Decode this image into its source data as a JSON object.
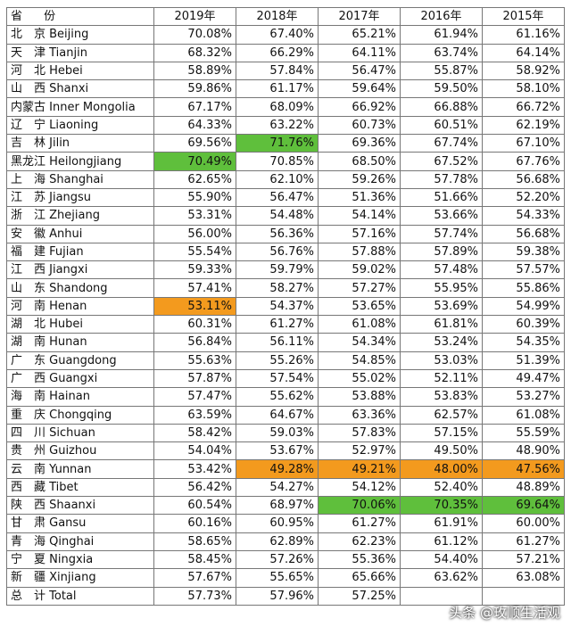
{
  "header": [
    "省 份",
    "2019年",
    "2018年",
    "2017年",
    "2016年",
    "2015年"
  ],
  "colors": {
    "highlight_green": "#5fbf3c",
    "highlight_orange": "#f39a1e"
  },
  "rows": [
    {
      "name": "北　京 Beijing",
      "v": [
        "70.08%",
        "67.40%",
        "65.21%",
        "61.94%",
        "61.16%"
      ],
      "hl": [
        "",
        "",
        "",
        "",
        ""
      ]
    },
    {
      "name": "天　津 Tianjin",
      "v": [
        "68.32%",
        "66.29%",
        "64.11%",
        "63.74%",
        "64.14%"
      ],
      "hl": [
        "",
        "",
        "",
        "",
        ""
      ]
    },
    {
      "name": "河　北 Hebei",
      "v": [
        "58.89%",
        "57.84%",
        "56.47%",
        "55.87%",
        "58.92%"
      ],
      "hl": [
        "",
        "",
        "",
        "",
        ""
      ]
    },
    {
      "name": "山　西 Shanxi",
      "v": [
        "59.86%",
        "61.17%",
        "59.64%",
        "59.50%",
        "58.10%"
      ],
      "hl": [
        "",
        "",
        "",
        "",
        ""
      ]
    },
    {
      "name": "内蒙古 Inner Mongolia",
      "v": [
        "67.17%",
        "68.09%",
        "66.92%",
        "66.88%",
        "66.72%"
      ],
      "hl": [
        "",
        "",
        "",
        "",
        ""
      ]
    },
    {
      "name": "辽　宁 Liaoning",
      "v": [
        "64.33%",
        "63.22%",
        "60.73%",
        "60.51%",
        "62.19%"
      ],
      "hl": [
        "",
        "",
        "",
        "",
        ""
      ]
    },
    {
      "name": "吉　林 Jilin",
      "v": [
        "69.56%",
        "71.76%",
        "69.36%",
        "67.74%",
        "67.10%"
      ],
      "hl": [
        "",
        "green",
        "",
        "",
        ""
      ]
    },
    {
      "name": "黑龙江 Heilongjiang",
      "v": [
        "70.49%",
        "70.85%",
        "68.50%",
        "67.52%",
        "67.76%"
      ],
      "hl": [
        "green",
        "",
        "",
        "",
        ""
      ]
    },
    {
      "name": "上　海 Shanghai",
      "v": [
        "62.65%",
        "62.10%",
        "59.26%",
        "57.78%",
        "56.68%"
      ],
      "hl": [
        "",
        "",
        "",
        "",
        ""
      ]
    },
    {
      "name": "江　苏 Jiangsu",
      "v": [
        "55.90%",
        "56.47%",
        "51.36%",
        "51.66%",
        "52.20%"
      ],
      "hl": [
        "",
        "",
        "",
        "",
        ""
      ]
    },
    {
      "name": "浙　江 Zhejiang",
      "v": [
        "53.31%",
        "54.48%",
        "54.14%",
        "53.66%",
        "54.33%"
      ],
      "hl": [
        "",
        "",
        "",
        "",
        ""
      ]
    },
    {
      "name": "安　徽 Anhui",
      "v": [
        "56.00%",
        "56.36%",
        "57.16%",
        "57.74%",
        "56.68%"
      ],
      "hl": [
        "",
        "",
        "",
        "",
        ""
      ]
    },
    {
      "name": "福　建 Fujian",
      "v": [
        "55.54%",
        "56.76%",
        "57.88%",
        "57.89%",
        "59.38%"
      ],
      "hl": [
        "",
        "",
        "",
        "",
        ""
      ]
    },
    {
      "name": "江　西 Jiangxi",
      "v": [
        "59.33%",
        "59.79%",
        "59.02%",
        "57.48%",
        "57.57%"
      ],
      "hl": [
        "",
        "",
        "",
        "",
        ""
      ]
    },
    {
      "name": "山　东 Shandong",
      "v": [
        "57.41%",
        "58.27%",
        "57.27%",
        "55.95%",
        "55.86%"
      ],
      "hl": [
        "",
        "",
        "",
        "",
        ""
      ]
    },
    {
      "name": "河　南 Henan",
      "v": [
        "53.11%",
        "54.37%",
        "53.65%",
        "53.69%",
        "54.99%"
      ],
      "hl": [
        "orange",
        "",
        "",
        "",
        ""
      ]
    },
    {
      "name": "湖　北 Hubei",
      "v": [
        "60.31%",
        "61.27%",
        "61.08%",
        "61.81%",
        "60.39%"
      ],
      "hl": [
        "",
        "",
        "",
        "",
        ""
      ]
    },
    {
      "name": "湖　南 Hunan",
      "v": [
        "56.84%",
        "56.11%",
        "54.34%",
        "53.24%",
        "54.35%"
      ],
      "hl": [
        "",
        "",
        "",
        "",
        ""
      ]
    },
    {
      "name": "广　东 Guangdong",
      "v": [
        "55.63%",
        "55.26%",
        "54.85%",
        "53.03%",
        "51.39%"
      ],
      "hl": [
        "",
        "",
        "",
        "",
        ""
      ]
    },
    {
      "name": "广　西 Guangxi",
      "v": [
        "57.87%",
        "57.54%",
        "55.02%",
        "52.11%",
        "49.47%"
      ],
      "hl": [
        "",
        "",
        "",
        "",
        ""
      ]
    },
    {
      "name": "海　南 Hainan",
      "v": [
        "57.47%",
        "55.62%",
        "53.88%",
        "53.83%",
        "53.27%"
      ],
      "hl": [
        "",
        "",
        "",
        "",
        ""
      ]
    },
    {
      "name": "重　庆 Chongqing",
      "v": [
        "63.59%",
        "64.67%",
        "63.36%",
        "62.57%",
        "61.08%"
      ],
      "hl": [
        "",
        "",
        "",
        "",
        ""
      ]
    },
    {
      "name": "四　川 Sichuan",
      "v": [
        "58.42%",
        "59.03%",
        "57.83%",
        "57.15%",
        "55.59%"
      ],
      "hl": [
        "",
        "",
        "",
        "",
        ""
      ]
    },
    {
      "name": "贵　州 Guizhou",
      "v": [
        "54.04%",
        "53.67%",
        "52.97%",
        "49.50%",
        "48.90%"
      ],
      "hl": [
        "",
        "",
        "",
        "",
        ""
      ]
    },
    {
      "name": "云　南 Yunnan",
      "v": [
        "53.42%",
        "49.28%",
        "49.21%",
        "48.00%",
        "47.56%"
      ],
      "hl": [
        "",
        "orange",
        "orange",
        "orange",
        "orange"
      ]
    },
    {
      "name": "西　藏 Tibet",
      "v": [
        "56.42%",
        "54.27%",
        "54.12%",
        "52.40%",
        "48.89%"
      ],
      "hl": [
        "",
        "",
        "",
        "",
        ""
      ]
    },
    {
      "name": "陕　西 Shaanxi",
      "v": [
        "60.54%",
        "68.97%",
        "70.06%",
        "70.35%",
        "69.64%"
      ],
      "hl": [
        "",
        "",
        "green",
        "green",
        "green"
      ]
    },
    {
      "name": "甘　肃 Gansu",
      "v": [
        "60.16%",
        "60.95%",
        "61.27%",
        "61.91%",
        "60.00%"
      ],
      "hl": [
        "",
        "",
        "",
        "",
        ""
      ]
    },
    {
      "name": "青　海 Qinghai",
      "v": [
        "58.65%",
        "62.89%",
        "62.23%",
        "61.12%",
        "61.27%"
      ],
      "hl": [
        "",
        "",
        "",
        "",
        ""
      ]
    },
    {
      "name": "宁　夏 Ningxia",
      "v": [
        "58.45%",
        "57.26%",
        "55.36%",
        "54.40%",
        "57.21%"
      ],
      "hl": [
        "",
        "",
        "",
        "",
        ""
      ]
    },
    {
      "name": "新　疆 Xinjiang",
      "v": [
        "57.67%",
        "55.65%",
        "65.66%",
        "63.62%",
        "63.08%"
      ],
      "hl": [
        "",
        "",
        "",
        "",
        ""
      ]
    },
    {
      "name": "总　计 Total",
      "v": [
        "57.73%",
        "57.96%",
        "57.25%",
        "",
        ""
      ],
      "hl": [
        "",
        "",
        "",
        "",
        ""
      ]
    }
  ],
  "watermark": "头条 @玫顺生活观"
}
